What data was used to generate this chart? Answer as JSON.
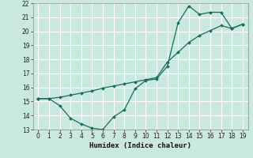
{
  "title": "",
  "xlabel": "Humidex (Indice chaleur)",
  "background_color": "#c8e8e0",
  "grid_color": "#ffffff",
  "line_color": "#1a6b5a",
  "x_line1": [
    0,
    1,
    2,
    3,
    4,
    5,
    6,
    7,
    8,
    9,
    10,
    11,
    12,
    13,
    14,
    15,
    16,
    17,
    18,
    19
  ],
  "y_line1": [
    15.2,
    15.2,
    14.7,
    13.8,
    13.4,
    13.1,
    13.0,
    13.9,
    14.4,
    15.9,
    16.5,
    16.6,
    17.5,
    20.6,
    21.8,
    21.2,
    21.35,
    21.35,
    20.2,
    20.5
  ],
  "x_line2": [
    0,
    1,
    2,
    3,
    4,
    5,
    6,
    7,
    8,
    9,
    10,
    11,
    12,
    13,
    14,
    15,
    16,
    17,
    18,
    19
  ],
  "y_line2": [
    15.2,
    15.2,
    15.3,
    15.45,
    15.6,
    15.75,
    15.95,
    16.1,
    16.25,
    16.4,
    16.55,
    16.7,
    17.8,
    18.5,
    19.2,
    19.7,
    20.05,
    20.4,
    20.2,
    20.5
  ],
  "xlim": [
    -0.5,
    19.5
  ],
  "ylim": [
    13,
    22
  ],
  "yticks": [
    13,
    14,
    15,
    16,
    17,
    18,
    19,
    20,
    21,
    22
  ],
  "xticks": [
    0,
    1,
    2,
    3,
    4,
    5,
    6,
    7,
    8,
    9,
    10,
    11,
    12,
    13,
    14,
    15,
    16,
    17,
    18,
    19
  ],
  "tick_fontsize": 5.5,
  "label_fontsize": 6.5
}
